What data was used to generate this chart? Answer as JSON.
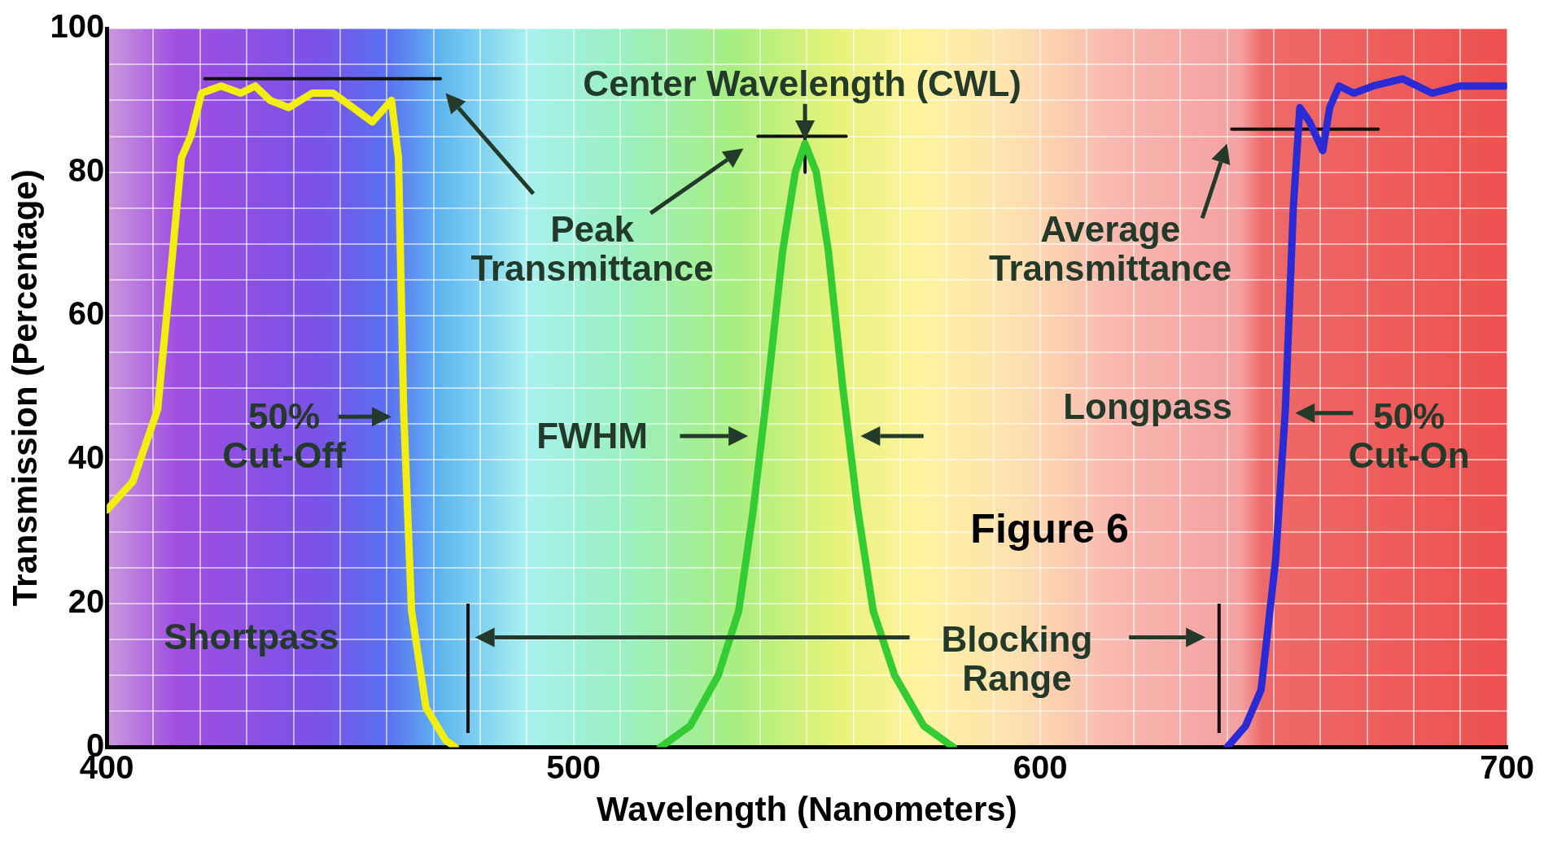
{
  "chart_data": {
    "type": "line",
    "xlabel": "Wavelength (Nanometers)",
    "ylabel": "Transmission (Percentage)",
    "xlim": [
      400,
      700
    ],
    "ylim": [
      0,
      100
    ],
    "xticks": [
      400,
      {
        "value": 410,
        "label": null
      },
      {
        "value": 420,
        "label": null
      },
      {
        "value": 430,
        "label": null
      },
      {
        "value": 440,
        "label": null
      },
      {
        "value": 450,
        "label": null
      },
      {
        "value": 460,
        "label": null
      },
      {
        "value": 470,
        "label": null
      },
      {
        "value": 480,
        "label": null
      },
      {
        "value": 490,
        "label": null
      },
      500,
      {
        "value": 510,
        "label": null
      },
      {
        "value": 520,
        "label": null
      },
      {
        "value": 530,
        "label": null
      },
      {
        "value": 540,
        "label": null
      },
      {
        "value": 550,
        "label": null
      },
      {
        "value": 560,
        "label": null
      },
      {
        "value": 570,
        "label": null
      },
      {
        "value": 580,
        "label": null
      },
      {
        "value": 590,
        "label": null
      },
      600,
      {
        "value": 610,
        "label": null
      },
      {
        "value": 620,
        "label": null
      },
      {
        "value": 630,
        "label": null
      },
      {
        "value": 640,
        "label": null
      },
      {
        "value": 650,
        "label": null
      },
      {
        "value": 660,
        "label": null
      },
      {
        "value": 670,
        "label": null
      },
      {
        "value": 680,
        "label": null
      },
      {
        "value": 690,
        "label": null
      },
      700
    ],
    "yticks": [
      0,
      {
        "value": 5,
        "label": null
      },
      {
        "value": 10,
        "label": null
      },
      {
        "value": 15,
        "label": null
      },
      20,
      {
        "value": 25,
        "label": null
      },
      {
        "value": 30,
        "label": null
      },
      {
        "value": 35,
        "label": null
      },
      40,
      {
        "value": 45,
        "label": null
      },
      {
        "value": 50,
        "label": null
      },
      {
        "value": 55,
        "label": null
      },
      60,
      {
        "value": 65,
        "label": null
      },
      {
        "value": 70,
        "label": null
      },
      {
        "value": 75,
        "label": null
      },
      80,
      {
        "value": 85,
        "label": null
      },
      {
        "value": 90,
        "label": null
      },
      {
        "value": 95,
        "label": null
      },
      100
    ],
    "grid": true,
    "legend": false,
    "marker": "none",
    "line_style": "solid",
    "series": [
      {
        "color": "#f2ee10",
        "x": [
          400,
          405.6,
          410.9,
          414,
          416,
          418,
          420.3,
          424.5,
          428.7,
          431.8,
          435,
          439,
          444,
          448.5,
          452.7,
          456.9,
          461,
          462.5,
          463.6,
          465.3,
          468.4,
          472.6,
          474.7
        ],
        "values": [
          33,
          37,
          47,
          68,
          82,
          85,
          91,
          92,
          91,
          92,
          90,
          89,
          91,
          91,
          89,
          87,
          90,
          82,
          47,
          19,
          5.5,
          1,
          0
        ]
      },
      {
        "color": "#33cc33",
        "x": [
          518.6,
          525,
          531,
          535.4,
          538.5,
          541.6,
          544.8,
          547.5,
          549.6,
          552,
          554.6,
          557.7,
          560.9,
          564.2,
          568.8,
          575,
          581.4
        ],
        "values": [
          0,
          3,
          10,
          19,
          33,
          50,
          69,
          80,
          84,
          80,
          69,
          50,
          33,
          19,
          10,
          3,
          0
        ]
      },
      {
        "color": "#2b2bd6",
        "x": [
          640,
          644,
          647.3,
          650.4,
          652.5,
          654.2,
          655.6,
          657.7,
          660.5,
          662,
          664,
          667.2,
          671.3,
          677.6,
          683.9,
          690,
          699.6
        ],
        "values": [
          0,
          3,
          8,
          26,
          47,
          75,
          89,
          87,
          83,
          89,
          92,
          91,
          92,
          93,
          91,
          92,
          92
        ]
      },
      {
        "color": "#111111",
        "x": [
          421,
          471.5
        ],
        "values": [
          93,
          93
        ]
      },
      {
        "color": "#111111",
        "x": [
          539.5,
          558.4
        ],
        "values": [
          85,
          85
        ]
      },
      {
        "color": "#111111",
        "x": [
          549.6,
          549.6
        ],
        "values": [
          87.5,
          80
        ]
      },
      {
        "color": "#111111",
        "x": [
          641,
          672.4
        ],
        "values": [
          86,
          86
        ]
      }
    ],
    "ref_lines": [
      {
        "axis": "x",
        "value": 477.4
      },
      {
        "axis": "x",
        "value": 638.3
      }
    ],
    "annotations": [
      "Center Wavelength (CWL)",
      "Peak\nTransmittance",
      "Average\nTransmittance",
      "50%\nCut-Off",
      "FWHM",
      "Longpass",
      "50%\nCut-On",
      "Shortpass",
      "Blocking\nRange",
      "Figure 6"
    ]
  }
}
